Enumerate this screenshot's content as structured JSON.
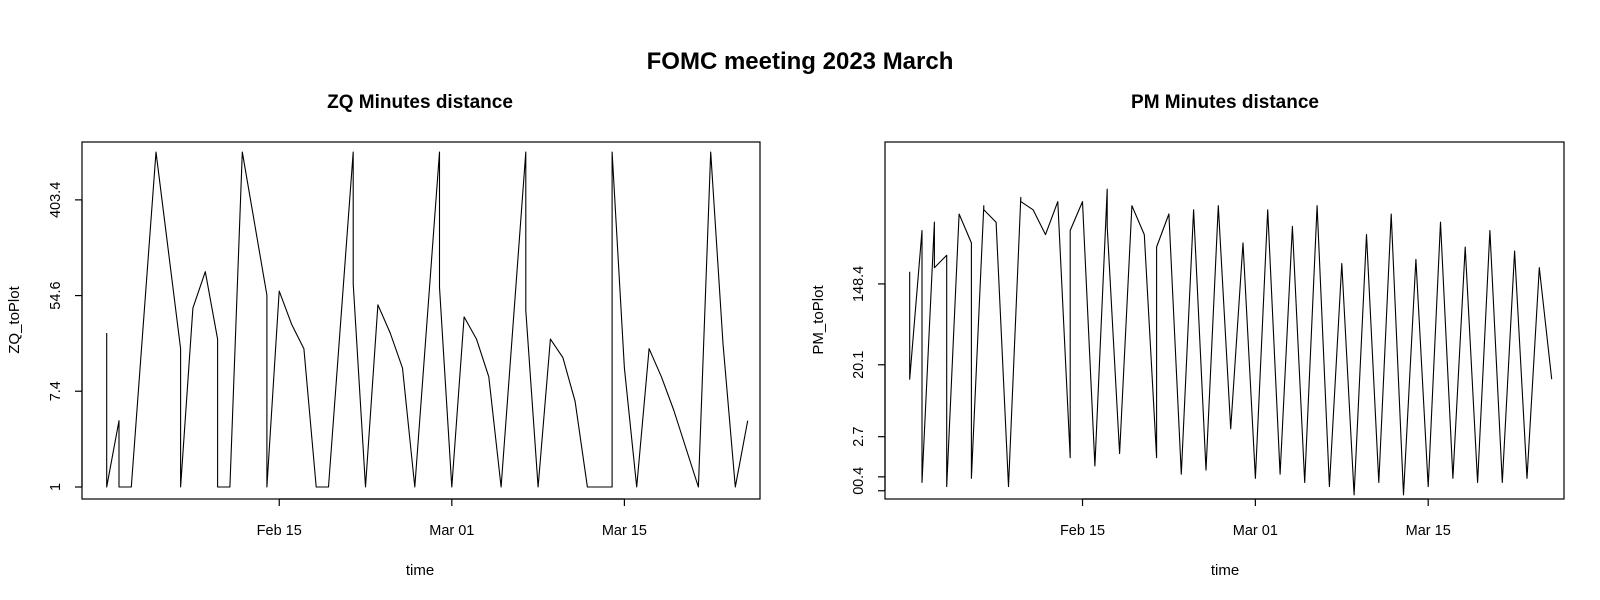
{
  "figure": {
    "title": "FOMC meeting 2023 March"
  },
  "chart_data": [
    {
      "type": "line",
      "title": "ZQ Minutes distance",
      "xlabel": "time",
      "ylabel": "ZQ_toPlot",
      "x_ticks": [
        "Feb 15",
        "Mar 01",
        "Mar 15"
      ],
      "y_ticks": [
        "1",
        "7.4",
        "54.6",
        "403.4"
      ],
      "xlim": [
        "2023-01-30",
        "2023-03-26"
      ],
      "y_scale": "log",
      "ylim": [
        1,
        1097
      ],
      "grid": false,
      "legend": "none",
      "line_color": "#000000",
      "series": [
        {
          "x": [
            "2023-02-01",
            "2023-02-01",
            "2023-02-02",
            "2023-02-02",
            "2023-02-03",
            "2023-02-05",
            "2023-02-07",
            "2023-02-07",
            "2023-02-08",
            "2023-02-09",
            "2023-02-10",
            "2023-02-10",
            "2023-02-11",
            "2023-02-12",
            "2023-02-14",
            "2023-02-14",
            "2023-02-15",
            "2023-02-16",
            "2023-02-17",
            "2023-02-18",
            "2023-02-19",
            "2023-02-21",
            "2023-02-21",
            "2023-02-22",
            "2023-02-23",
            "2023-02-24",
            "2023-02-25",
            "2023-02-26",
            "2023-02-28",
            "2023-02-28",
            "2023-03-01",
            "2023-03-02",
            "2023-03-03",
            "2023-03-04",
            "2023-03-05",
            "2023-03-07",
            "2023-03-07",
            "2023-03-08",
            "2023-03-09",
            "2023-03-10",
            "2023-03-11",
            "2023-03-12",
            "2023-03-14",
            "2023-03-14",
            "2023-03-15",
            "2023-03-16",
            "2023-03-17",
            "2023-03-18",
            "2023-03-19",
            "2023-03-21",
            "2023-03-21",
            "2023-03-22",
            "2023-03-23",
            "2023-03-24",
            "2023-03-25"
          ],
          "y": [
            25,
            1,
            4,
            1,
            1,
            1097,
            18,
            1,
            42,
            90,
            22,
            1,
            1,
            1097,
            55,
            1,
            60,
            30,
            18,
            1,
            1,
            1097,
            70,
            1,
            45,
            25,
            12,
            1,
            1097,
            65,
            1,
            35,
            22,
            10,
            1,
            1097,
            40,
            1,
            22,
            15,
            6,
            1,
            1,
            1097,
            12,
            1,
            18,
            10,
            5,
            1,
            1,
            1097,
            20,
            1,
            4
          ]
        }
      ]
    },
    {
      "type": "line",
      "title": "PM Minutes distance",
      "xlabel": "time",
      "ylabel": "PM_toPlot",
      "x_ticks": [
        "Feb 15",
        "Mar 01",
        "Mar 15"
      ],
      "y_ticks": [
        "0",
        "0.4",
        "2.7",
        "20.1",
        "148.4"
      ],
      "xlim": [
        "2023-01-30",
        "2023-03-26"
      ],
      "y_scale": "log1p",
      "ylim": [
        -0.2,
        8.2
      ],
      "grid": false,
      "legend": "none",
      "line_color": "#000000",
      "series": [
        {
          "x": [
            "2023-02-01",
            "2023-02-01",
            "2023-02-02",
            "2023-02-02",
            "2023-02-03",
            "2023-02-03",
            "2023-02-04",
            "2023-02-04",
            "2023-02-05",
            "2023-02-06",
            "2023-02-06",
            "2023-02-07",
            "2023-02-07",
            "2023-02-08",
            "2023-02-09",
            "2023-02-10",
            "2023-02-10",
            "2023-02-11",
            "2023-02-12",
            "2023-02-13",
            "2023-02-14",
            "2023-02-14",
            "2023-02-15",
            "2023-02-16",
            "2023-02-17",
            "2023-02-17",
            "2023-02-18",
            "2023-02-19",
            "2023-02-20",
            "2023-02-21",
            "2023-02-21",
            "2023-02-22",
            "2023-02-23",
            "2023-02-24",
            "2023-02-25",
            "2023-02-26",
            "2023-02-27",
            "2023-02-28",
            "2023-03-01",
            "2023-03-02",
            "2023-03-03",
            "2023-03-04",
            "2023-03-05",
            "2023-03-06",
            "2023-03-07",
            "2023-03-08",
            "2023-03-09",
            "2023-03-10",
            "2023-03-11",
            "2023-03-12",
            "2023-03-13",
            "2023-03-14",
            "2023-03-15",
            "2023-03-16",
            "2023-03-17",
            "2023-03-18",
            "2023-03-19",
            "2023-03-20",
            "2023-03-21",
            "2023-03-22",
            "2023-03-23",
            "2023-03-24",
            "2023-03-25"
          ],
          "y": [
            5.3,
            2.7,
            6.3,
            0.2,
            6.5,
            5.4,
            5.7,
            0.1,
            6.7,
            6.0,
            0.3,
            6.9,
            6.8,
            6.5,
            0.1,
            7.1,
            7.0,
            6.8,
            6.2,
            7.0,
            0.8,
            6.3,
            7.0,
            0.6,
            7.3,
            6.4,
            0.9,
            6.9,
            6.2,
            0.8,
            5.9,
            6.7,
            0.4,
            6.8,
            0.5,
            6.9,
            1.5,
            6.0,
            0.3,
            6.8,
            0.4,
            6.4,
            0.2,
            6.9,
            0.1,
            5.5,
            -0.1,
            6.2,
            0.2,
            6.7,
            -0.1,
            5.6,
            0.1,
            6.5,
            0.3,
            5.9,
            0.2,
            6.3,
            0.2,
            5.8,
            0.3,
            5.4,
            2.7
          ]
        }
      ]
    }
  ]
}
